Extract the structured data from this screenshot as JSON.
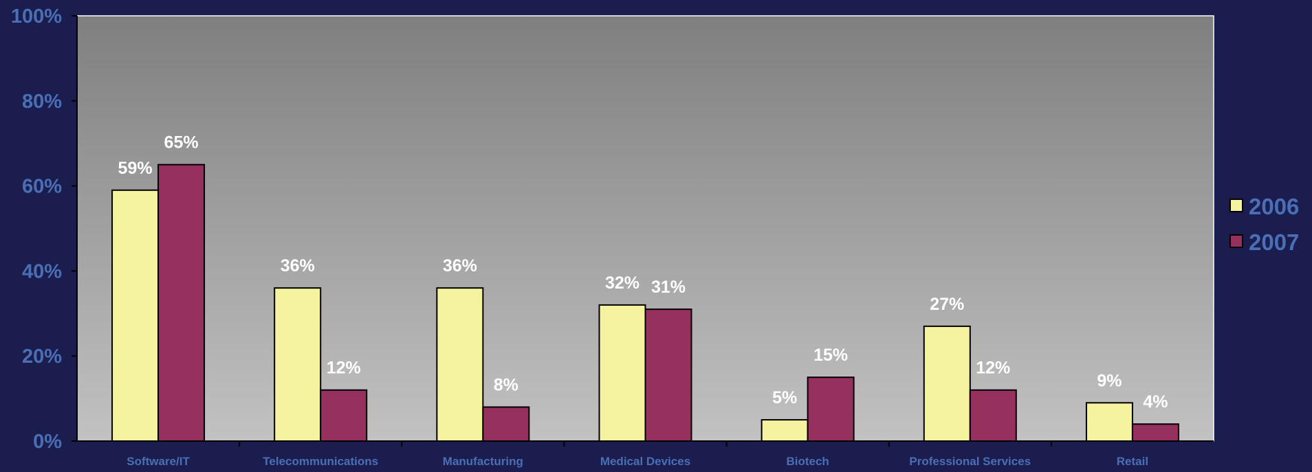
{
  "chart_data": {
    "type": "bar",
    "title": "",
    "xlabel": "",
    "ylabel": "",
    "categories": [
      "Software/IT",
      "Telecommunications",
      "Manufacturing",
      "Medical Devices",
      "Biotech",
      "Professional Services",
      "Retail"
    ],
    "series": [
      {
        "name": "2006",
        "values": [
          59,
          36,
          36,
          32,
          5,
          27,
          9
        ],
        "color": "#f5f2a0"
      },
      {
        "name": "2007",
        "values": [
          65,
          12,
          8,
          31,
          15,
          12,
          4
        ],
        "color": "#96305e"
      }
    ],
    "data_labels": [
      [
        "59%",
        "36%",
        "36%",
        "32%",
        "5%",
        "27%",
        "9%"
      ],
      [
        "65%",
        "12%",
        "8%",
        "31%",
        "15%",
        "12%",
        "4%"
      ]
    ],
    "ylim": [
      0,
      100
    ],
    "yticks": [
      "0%",
      "20%",
      "40%",
      "60%",
      "80%",
      "100%"
    ],
    "grid": false,
    "legend_position": "right",
    "colors": {
      "page_background": "#1b1d4e",
      "plot_gradient_top": "#7f7f7f",
      "plot_gradient_bottom": "#c2c2c2",
      "axis_text": "#4a6fb5",
      "data_label": "#ffffff",
      "legend_text": "#4a6fb5"
    }
  }
}
